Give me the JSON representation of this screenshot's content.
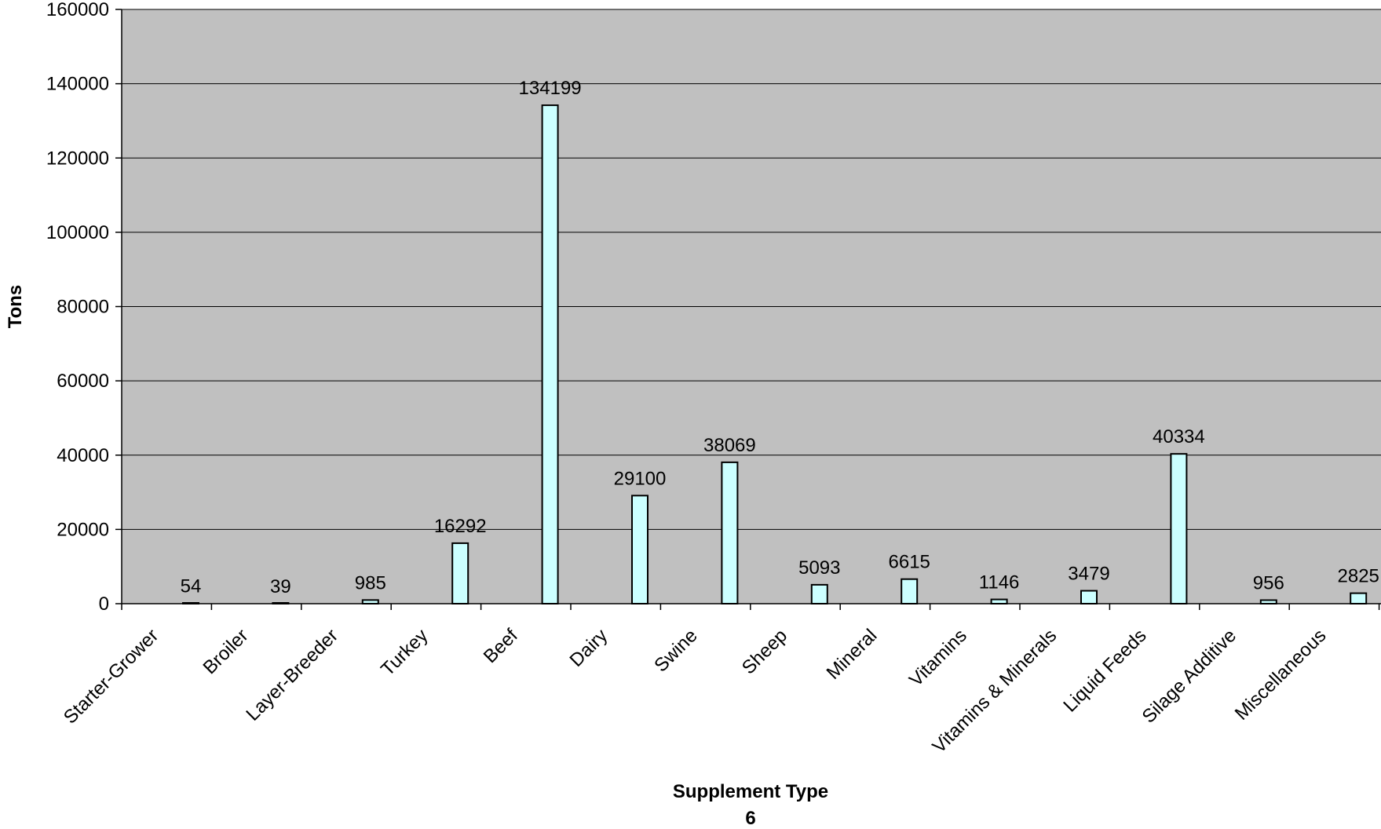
{
  "chart_data": {
    "type": "bar",
    "title": "",
    "xlabel": "Supplement Type",
    "xlabel_sub": "6",
    "ylabel": "Tons",
    "ylim": [
      0,
      160000
    ],
    "yticks": [
      0,
      20000,
      40000,
      60000,
      80000,
      100000,
      120000,
      140000,
      160000
    ],
    "grid": true,
    "legend": "none",
    "categories": [
      "Starter-Grower",
      "Broiler",
      "Layer-Breeder",
      "Turkey",
      "Beef",
      "Dairy",
      "Swine",
      "Sheep",
      "Mineral",
      "Vitamins",
      "Vitamins & Minerals",
      "Liquid Feeds",
      "Silage Additive",
      "Miscellaneous"
    ],
    "values": [
      54,
      39,
      985,
      16292,
      134199,
      29100,
      38069,
      5093,
      6615,
      1146,
      3479,
      40334,
      956,
      2825
    ],
    "data_labels": [
      "54",
      "39",
      "985",
      "16292",
      "134199",
      "29100",
      "38069",
      "5093",
      "6615",
      "1146",
      "3479",
      "40334",
      "956",
      "2825"
    ],
    "colors": {
      "plot_background": "#c0c0c0",
      "bar_fill": "#ccffff",
      "bar_stroke": "#000000",
      "gridline": "#000000"
    }
  }
}
